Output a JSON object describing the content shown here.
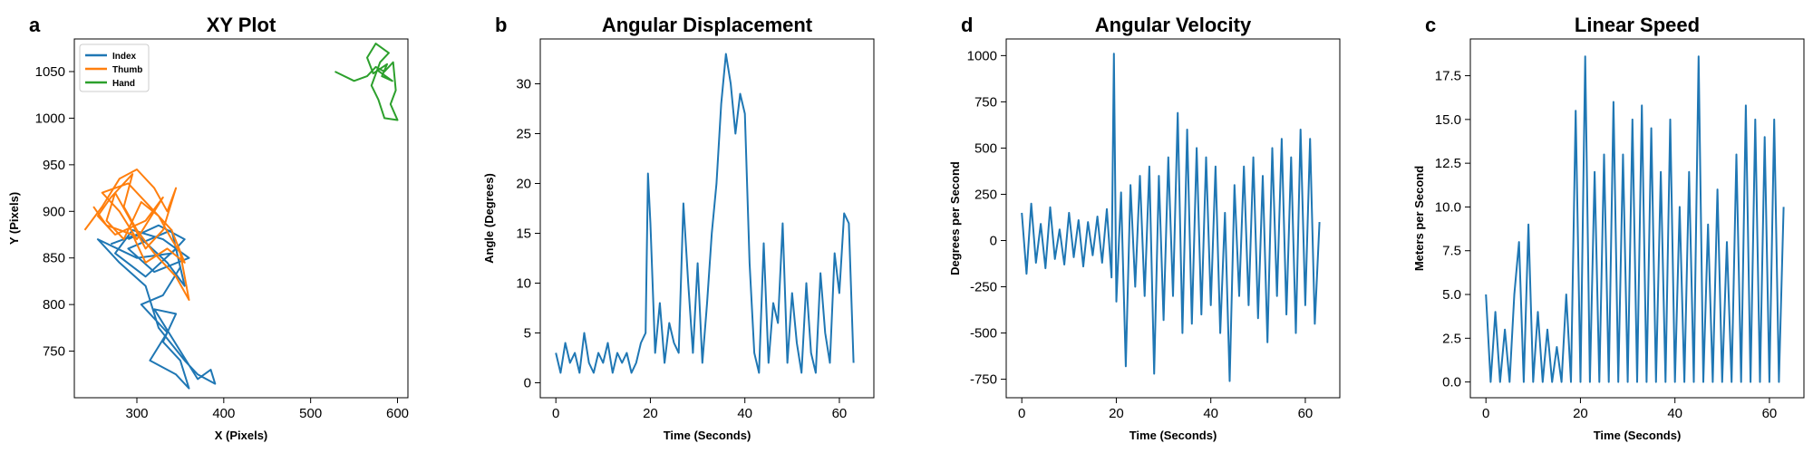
{
  "colors": {
    "index": "#1f77b4",
    "thumb": "#ff7f0e",
    "hand": "#2ca02c",
    "series": "#1f77b4"
  },
  "chart_data": [
    {
      "letter": "a",
      "type": "line",
      "title": "XY Plot",
      "xlabel": "X (Pixels)",
      "ylabel": "Y (Pixels)",
      "xlim": [
        228,
        612
      ],
      "ylim": [
        700,
        1085
      ],
      "xticks": [
        300,
        400,
        500,
        600
      ],
      "yticks": [
        750,
        800,
        850,
        900,
        950,
        1000,
        1050
      ],
      "legend": "top-left",
      "series": [
        {
          "name": "Index",
          "color": "#1f77b4",
          "points": [
            [
              270,
              865
            ],
            [
              300,
              875
            ],
            [
              335,
              845
            ],
            [
              355,
              820
            ],
            [
              345,
              860
            ],
            [
              310,
              830
            ],
            [
              275,
              855
            ],
            [
              295,
              880
            ],
            [
              330,
              870
            ],
            [
              360,
              850
            ],
            [
              320,
              835
            ],
            [
              290,
              860
            ],
            [
              340,
              880
            ],
            [
              350,
              840
            ],
            [
              330,
              810
            ],
            [
              305,
              800
            ],
            [
              335,
              770
            ],
            [
              315,
              740
            ],
            [
              345,
              725
            ],
            [
              360,
              710
            ],
            [
              350,
              740
            ],
            [
              330,
              760
            ],
            [
              345,
              790
            ],
            [
              320,
              795
            ],
            [
              370,
              720
            ],
            [
              385,
              730
            ],
            [
              390,
              715
            ],
            [
              370,
              725
            ],
            [
              355,
              740
            ],
            [
              325,
              775
            ],
            [
              310,
              820
            ],
            [
              280,
              845
            ],
            [
              255,
              870
            ],
            [
              300,
              850
            ],
            [
              340,
              855
            ],
            [
              355,
              870
            ],
            [
              325,
              885
            ],
            [
              290,
              870
            ]
          ]
        },
        {
          "name": "Thumb",
          "color": "#ff7f0e",
          "points": [
            [
              240,
              880
            ],
            [
              260,
              905
            ],
            [
              280,
              935
            ],
            [
              300,
              945
            ],
            [
              320,
              925
            ],
            [
              335,
              900
            ],
            [
              345,
              925
            ],
            [
              330,
              880
            ],
            [
              310,
              860
            ],
            [
              290,
              895
            ],
            [
              275,
              920
            ],
            [
              265,
              890
            ],
            [
              285,
              870
            ],
            [
              305,
              910
            ],
            [
              325,
              895
            ],
            [
              340,
              870
            ],
            [
              350,
              855
            ],
            [
              360,
              805
            ],
            [
              345,
              830
            ],
            [
              320,
              855
            ],
            [
              300,
              880
            ],
            [
              285,
              905
            ],
            [
              295,
              940
            ],
            [
              270,
              915
            ],
            [
              255,
              895
            ],
            [
              275,
              875
            ],
            [
              310,
              890
            ],
            [
              330,
              915
            ],
            [
              300,
              870
            ],
            [
              280,
              900
            ],
            [
              260,
              920
            ],
            [
              290,
              930
            ],
            [
              315,
              905
            ],
            [
              340,
              880
            ],
            [
              355,
              845
            ],
            [
              335,
              860
            ],
            [
              310,
              845
            ],
            [
              295,
              875
            ],
            [
              265,
              885
            ],
            [
              250,
              905
            ]
          ]
        },
        {
          "name": "Hand",
          "color": "#2ca02c",
          "points": [
            [
              528,
              1050
            ],
            [
              550,
              1040
            ],
            [
              565,
              1045
            ],
            [
              575,
              1055
            ],
            [
              585,
              1050
            ],
            [
              595,
              1060
            ],
            [
              598,
              1030
            ],
            [
              592,
              1015
            ],
            [
              600,
              998
            ],
            [
              585,
              1000
            ],
            [
              578,
              1020
            ],
            [
              570,
              1035
            ],
            [
              580,
              1060
            ],
            [
              590,
              1070
            ],
            [
              575,
              1080
            ],
            [
              565,
              1065
            ],
            [
              572,
              1048
            ],
            [
              588,
              1058
            ],
            [
              582,
              1045
            ],
            [
              594,
              1040
            ],
            [
              576,
              1052
            ]
          ]
        }
      ]
    },
    {
      "letter": "b",
      "type": "line",
      "title": "Angular Displacement",
      "xlabel": "Time (Seconds)",
      "ylabel": "Angle (Degrees)",
      "xlim": [
        -3.3,
        67.3
      ],
      "ylim": [
        -1.5,
        34.5
      ],
      "xticks": [
        0,
        20,
        40,
        60
      ],
      "yticks": [
        0,
        5,
        10,
        15,
        20,
        25,
        30
      ],
      "series": [
        {
          "name": "",
          "color": "#1f77b4",
          "x": [
            0,
            1,
            2,
            3,
            4,
            5,
            6,
            7,
            8,
            9,
            10,
            11,
            12,
            13,
            14,
            15,
            16,
            17,
            18,
            19,
            19.5,
            20,
            21,
            22,
            23,
            24,
            25,
            26,
            27,
            28,
            29,
            30,
            31,
            32,
            33,
            34,
            35,
            36,
            37,
            38,
            39,
            40,
            41,
            42,
            43,
            44,
            45,
            46,
            47,
            48,
            49,
            50,
            51,
            52,
            53,
            54,
            55,
            56,
            57,
            58,
            59,
            60,
            61,
            62,
            63
          ],
          "y": [
            3,
            1,
            4,
            2,
            3,
            1,
            5,
            2,
            1,
            3,
            2,
            4,
            1,
            3,
            2,
            3,
            1,
            2,
            4,
            5,
            21,
            16,
            3,
            8,
            2,
            6,
            4,
            3,
            18,
            10,
            3,
            12,
            2,
            8,
            15,
            20,
            28,
            33,
            30,
            25,
            29,
            27,
            12,
            3,
            1,
            14,
            2,
            8,
            6,
            16,
            2,
            9,
            4,
            1,
            10,
            3,
            1,
            11,
            5,
            2,
            13,
            9,
            17,
            16,
            2
          ]
        }
      ]
    },
    {
      "letter": "d",
      "type": "line",
      "title": "Angular Velocity",
      "xlabel": "Time (Seconds)",
      "ylabel": "Degrees per Second",
      "xlim": [
        -3.3,
        67.3
      ],
      "ylim": [
        -850,
        1090
      ],
      "xticks": [
        0,
        20,
        40,
        60
      ],
      "yticks": [
        -750,
        -500,
        -250,
        0,
        250,
        500,
        750,
        1000
      ],
      "series": [
        {
          "name": "",
          "color": "#1f77b4",
          "x": [
            0,
            1,
            2,
            3,
            4,
            5,
            6,
            7,
            8,
            9,
            10,
            11,
            12,
            13,
            14,
            15,
            16,
            17,
            18,
            19,
            19.5,
            20,
            21,
            22,
            23,
            24,
            25,
            26,
            27,
            28,
            29,
            30,
            31,
            32,
            33,
            34,
            35,
            36,
            37,
            38,
            39,
            40,
            41,
            42,
            43,
            44,
            45,
            46,
            47,
            48,
            49,
            50,
            51,
            52,
            53,
            54,
            55,
            56,
            57,
            58,
            59,
            60,
            61,
            62,
            63
          ],
          "y": [
            150,
            -180,
            200,
            -120,
            90,
            -150,
            180,
            -100,
            60,
            -130,
            150,
            -90,
            110,
            -140,
            100,
            -80,
            130,
            -120,
            170,
            -200,
            1010,
            -330,
            260,
            -680,
            300,
            -250,
            350,
            -300,
            400,
            -720,
            350,
            -430,
            450,
            -300,
            690,
            -500,
            600,
            -450,
            500,
            -400,
            450,
            -350,
            400,
            -500,
            150,
            -760,
            300,
            -300,
            400,
            -350,
            450,
            -420,
            350,
            -550,
            500,
            -300,
            550,
            -400,
            450,
            -500,
            600,
            -350,
            550,
            -450,
            100
          ]
        }
      ]
    },
    {
      "letter": "c",
      "type": "line",
      "title": "Linear Speed",
      "xlabel": "Time (Seconds)",
      "ylabel": "Meters per Second",
      "xlim": [
        -3.3,
        67.3
      ],
      "ylim": [
        -0.9,
        19.6
      ],
      "xticks": [
        0,
        20,
        40,
        60
      ],
      "yticks": [
        0.0,
        2.5,
        5.0,
        7.5,
        10.0,
        12.5,
        15.0,
        17.5
      ],
      "series": [
        {
          "name": "",
          "color": "#1f77b4",
          "x": [
            0,
            1,
            2,
            3,
            4,
            5,
            6,
            7,
            8,
            9,
            10,
            11,
            12,
            13,
            14,
            15,
            16,
            17,
            18,
            19,
            20,
            21,
            22,
            23,
            24,
            25,
            26,
            27,
            28,
            29,
            30,
            31,
            32,
            33,
            34,
            35,
            36,
            37,
            38,
            39,
            40,
            41,
            42,
            43,
            44,
            45,
            46,
            47,
            48,
            49,
            50,
            51,
            52,
            53,
            54,
            55,
            56,
            57,
            58,
            59,
            60,
            61,
            62,
            63
          ],
          "y": [
            5,
            0,
            4,
            0,
            3,
            0,
            5,
            8,
            0,
            9,
            0,
            4,
            0,
            3,
            0,
            2,
            0,
            5,
            0,
            15.5,
            0,
            18.6,
            0,
            12,
            0,
            13,
            0,
            16,
            0,
            13,
            0,
            15,
            0,
            15.8,
            0,
            14.5,
            0,
            12,
            0,
            15,
            0,
            10,
            0,
            12,
            0,
            18.6,
            0,
            9,
            0,
            11,
            0,
            8,
            0,
            13,
            0,
            15.8,
            0,
            15,
            0,
            14,
            0,
            15,
            0,
            10
          ]
        }
      ]
    }
  ]
}
